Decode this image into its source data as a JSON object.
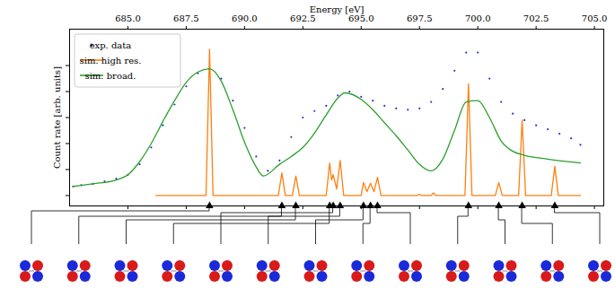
{
  "chart_data": {
    "type": "line",
    "x_label": "Energy [eV]",
    "y_label": "Count rate [arb. units]",
    "xlim": [
      682.5,
      705.4
    ],
    "xticks": [
      {
        "value": 685,
        "label": "685.0"
      },
      {
        "value": 687.5,
        "label": "687.5"
      },
      {
        "value": 690,
        "label": "690.0"
      },
      {
        "value": 692.5,
        "label": "692.5"
      },
      {
        "value": 695,
        "label": "695.0"
      },
      {
        "value": 697.5,
        "label": "697.5"
      },
      {
        "value": 700,
        "label": "700.0"
      },
      {
        "value": 702.5,
        "label": "702.5"
      },
      {
        "value": 705,
        "label": "705.0"
      }
    ],
    "ylim": [
      -0.08,
      1.28
    ],
    "yticks": [
      0,
      0.2,
      0.4,
      0.6,
      0.8,
      1.0
    ],
    "tick_labels": "x",
    "legend": "upper left",
    "series": [
      {
        "name": "exp. data",
        "type": "scatter",
        "color": "#3030d0",
        "x": [
          682.65,
          683.0,
          683.5,
          684.0,
          684.5,
          685.0,
          685.5,
          686.0,
          686.5,
          687.0,
          687.5,
          688.0,
          688.5,
          689.0,
          689.5,
          690.0,
          690.5,
          691.0,
          691.5,
          692.0,
          692.5,
          693.0,
          693.5,
          694.0,
          694.5,
          695.0,
          695.5,
          696.0,
          696.5,
          697.0,
          697.5,
          698.0,
          698.5,
          699.0,
          699.5,
          700.0,
          700.5,
          701.0,
          701.5,
          702.0,
          702.5,
          703.0,
          703.5,
          704.0,
          704.4
        ],
        "values": [
          0.07,
          0.08,
          0.09,
          0.11,
          0.13,
          0.16,
          0.24,
          0.37,
          0.54,
          0.7,
          0.84,
          0.94,
          0.975,
          0.9,
          0.73,
          0.52,
          0.3,
          0.19,
          0.27,
          0.45,
          0.6,
          0.65,
          0.69,
          0.77,
          0.8,
          0.76,
          0.73,
          0.69,
          0.67,
          0.66,
          0.67,
          0.72,
          0.82,
          0.96,
          1.1,
          1.1,
          0.9,
          0.72,
          0.63,
          0.58,
          0.54,
          0.51,
          0.475,
          0.44,
          0.39
        ]
      },
      {
        "name": "sim. high res.",
        "type": "line",
        "color": "#ff7f0e",
        "x": [
          686.2,
          688.35,
          688.5,
          688.65,
          691.45,
          691.6,
          691.75,
          692.05,
          692.2,
          692.35,
          693.5,
          693.65,
          693.73,
          693.8,
          693.95,
          694.1,
          694.25,
          695.0,
          695.1,
          695.25,
          695.4,
          695.55,
          695.7,
          695.85,
          697.4,
          697.5,
          697.6,
          698.0,
          698.1,
          698.2,
          699.45,
          699.6,
          699.75,
          700.75,
          700.9,
          701.05,
          701.75,
          701.9,
          702.05,
          703.15,
          703.3,
          703.45,
          704.4
        ],
        "values": [
          0,
          0,
          1.125,
          0,
          0,
          0.175,
          0,
          0,
          0.15,
          0,
          0,
          0.25,
          0.12,
          0.16,
          0.05,
          0.27,
          0,
          0,
          0.1,
          0.03,
          0.094,
          0.03,
          0.14,
          0,
          0,
          0.01,
          0,
          0,
          0.02,
          0,
          0,
          0.86,
          0,
          0,
          0.1,
          0,
          0,
          0.58,
          0,
          0,
          0.225,
          0,
          0
        ]
      },
      {
        "name": "sim. broad.",
        "type": "line",
        "color": "#2ca02c",
        "x": [
          682.65,
          683.5,
          684.5,
          685.0,
          685.5,
          686.0,
          686.5,
          687.0,
          687.5,
          688.0,
          688.5,
          689.0,
          689.5,
          690.0,
          690.5,
          690.8,
          691.5,
          692.0,
          692.5,
          693.0,
          693.5,
          694.0,
          694.3,
          695.0,
          695.5,
          696.0,
          696.5,
          697.0,
          697.5,
          698.0,
          698.5,
          699.0,
          699.5,
          700.0,
          700.5,
          701.0,
          701.5,
          702.0,
          703.0,
          704.4
        ],
        "values": [
          0.07,
          0.09,
          0.12,
          0.16,
          0.26,
          0.4,
          0.57,
          0.73,
          0.87,
          0.95,
          0.975,
          0.88,
          0.66,
          0.41,
          0.22,
          0.15,
          0.24,
          0.3,
          0.37,
          0.48,
          0.62,
          0.75,
          0.79,
          0.74,
          0.66,
          0.56,
          0.46,
          0.35,
          0.24,
          0.19,
          0.28,
          0.5,
          0.72,
          0.73,
          0.6,
          0.42,
          0.34,
          0.31,
          0.28,
          0.25
        ]
      }
    ],
    "transitions": [
      688.5,
      691.6,
      692.2,
      693.65,
      693.8,
      694.1,
      695.1,
      695.4,
      695.7,
      699.6,
      700.9,
      701.9,
      703.3
    ]
  }
}
